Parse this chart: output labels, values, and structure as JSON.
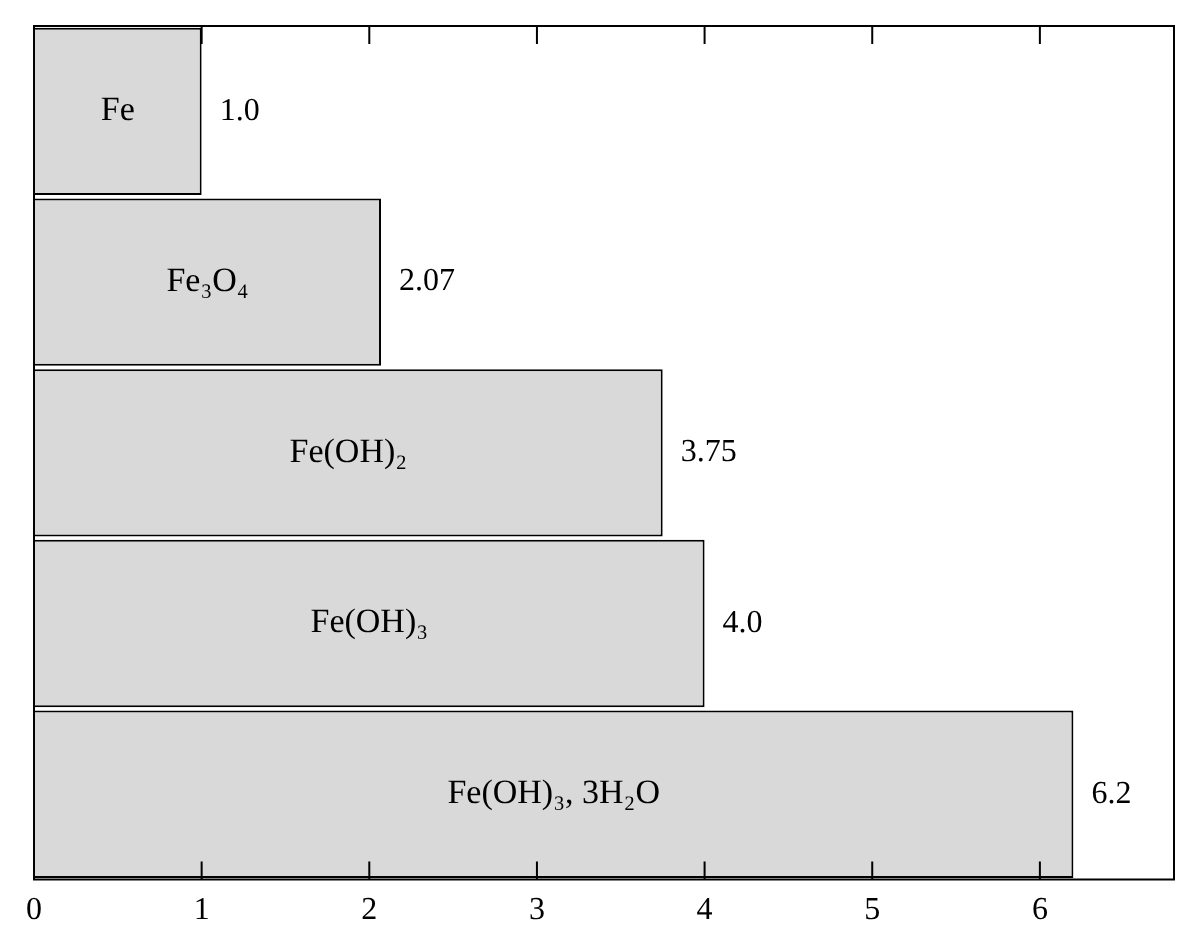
{
  "chart_data": {
    "type": "bar",
    "orientation": "horizontal",
    "categories": [
      "Fe",
      "Fe₃O₄",
      "Fe(OH)₂",
      "Fe(OH)₃",
      "Fe(OH)₃, 3H₂O"
    ],
    "values": [
      1.0,
      2.07,
      3.75,
      4.0,
      6.2
    ],
    "value_labels": [
      "1.0",
      "2.07",
      "3.75",
      "4.0",
      "6.2"
    ],
    "color": "#d9d9d9",
    "xlim": [
      0,
      6.8
    ],
    "xticks": [
      0,
      1,
      2,
      3,
      4,
      5,
      6
    ],
    "grid": false,
    "legend": false,
    "tick_labels": "x"
  }
}
